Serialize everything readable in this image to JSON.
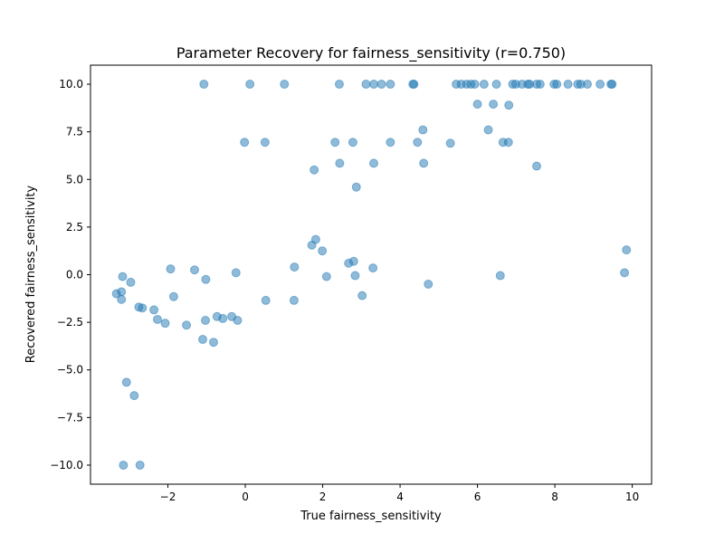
{
  "chart_data": {
    "type": "scatter",
    "title": "Parameter Recovery for fairness_sensitivity (r=0.750)",
    "xlabel": "True fairness_sensitivity",
    "ylabel": "Recovered fairness_sensitivity",
    "xlim": [
      -4,
      10.5
    ],
    "ylim": [
      -11,
      11
    ],
    "xticks": [
      -2,
      0,
      2,
      4,
      6,
      8,
      10
    ],
    "xtick_labels": [
      "−2",
      "0",
      "2",
      "4",
      "6",
      "8",
      "10"
    ],
    "yticks": [
      -10,
      -7.5,
      -5,
      -2.5,
      0,
      2.5,
      5,
      7.5,
      10
    ],
    "ytick_labels": [
      "−10.0",
      "−7.5",
      "−5.0",
      "−2.5",
      "0.0",
      "2.5",
      "5.0",
      "7.5",
      "10.0"
    ],
    "grid": false,
    "color": "#1f77b4",
    "points": [
      {
        "x": -1.07,
        "y": 10
      },
      {
        "x": 0.12,
        "y": 10
      },
      {
        "x": 1.01,
        "y": 10
      },
      {
        "x": 2.43,
        "y": 10
      },
      {
        "x": 3.12,
        "y": 10
      },
      {
        "x": 3.32,
        "y": 10
      },
      {
        "x": 3.52,
        "y": 10
      },
      {
        "x": 3.75,
        "y": 10
      },
      {
        "x": 4.33,
        "y": 10
      },
      {
        "x": 4.36,
        "y": 10
      },
      {
        "x": 5.45,
        "y": 10
      },
      {
        "x": 5.58,
        "y": 10
      },
      {
        "x": 5.72,
        "y": 10
      },
      {
        "x": 5.83,
        "y": 10
      },
      {
        "x": 5.93,
        "y": 10
      },
      {
        "x": 6.17,
        "y": 10
      },
      {
        "x": 6.49,
        "y": 10
      },
      {
        "x": 6.91,
        "y": 10
      },
      {
        "x": 6.99,
        "y": 10
      },
      {
        "x": 7.15,
        "y": 10
      },
      {
        "x": 7.3,
        "y": 10
      },
      {
        "x": 7.35,
        "y": 10
      },
      {
        "x": 7.53,
        "y": 10
      },
      {
        "x": 7.62,
        "y": 10
      },
      {
        "x": 7.98,
        "y": 10
      },
      {
        "x": 8.05,
        "y": 10
      },
      {
        "x": 8.34,
        "y": 10
      },
      {
        "x": 8.59,
        "y": 10
      },
      {
        "x": 8.67,
        "y": 10
      },
      {
        "x": 8.84,
        "y": 10
      },
      {
        "x": 9.17,
        "y": 10
      },
      {
        "x": 9.45,
        "y": 10
      },
      {
        "x": 9.48,
        "y": 10
      },
      {
        "x": 6.0,
        "y": 8.95
      },
      {
        "x": 6.41,
        "y": 8.95
      },
      {
        "x": 6.81,
        "y": 8.9
      },
      {
        "x": 4.59,
        "y": 7.6
      },
      {
        "x": 6.28,
        "y": 7.6
      },
      {
        "x": -0.02,
        "y": 6.95
      },
      {
        "x": 0.51,
        "y": 6.95
      },
      {
        "x": 2.32,
        "y": 6.95
      },
      {
        "x": 2.78,
        "y": 6.95
      },
      {
        "x": 3.75,
        "y": 6.95
      },
      {
        "x": 4.45,
        "y": 6.95
      },
      {
        "x": 5.3,
        "y": 6.9
      },
      {
        "x": 6.66,
        "y": 6.95
      },
      {
        "x": 6.8,
        "y": 6.95
      },
      {
        "x": 2.44,
        "y": 5.85
      },
      {
        "x": 3.32,
        "y": 5.85
      },
      {
        "x": 4.61,
        "y": 5.85
      },
      {
        "x": 7.53,
        "y": 5.7
      },
      {
        "x": 1.78,
        "y": 5.5
      },
      {
        "x": 2.87,
        "y": 4.6
      },
      {
        "x": 1.82,
        "y": 1.85
      },
      {
        "x": 1.72,
        "y": 1.55
      },
      {
        "x": 1.99,
        "y": 1.25
      },
      {
        "x": 9.85,
        "y": 1.3
      },
      {
        "x": 2.8,
        "y": 0.7
      },
      {
        "x": 2.67,
        "y": 0.6
      },
      {
        "x": 1.27,
        "y": 0.4
      },
      {
        "x": 3.3,
        "y": 0.35
      },
      {
        "x": -1.93,
        "y": 0.3
      },
      {
        "x": -1.31,
        "y": 0.25
      },
      {
        "x": -0.24,
        "y": 0.1
      },
      {
        "x": 9.8,
        "y": 0.1
      },
      {
        "x": -3.17,
        "y": -0.1
      },
      {
        "x": 2.1,
        "y": -0.1
      },
      {
        "x": 2.84,
        "y": -0.05
      },
      {
        "x": 6.59,
        "y": -0.05
      },
      {
        "x": -1.02,
        "y": -0.25
      },
      {
        "x": -2.96,
        "y": -0.4
      },
      {
        "x": 4.73,
        "y": -0.5
      },
      {
        "x": -3.2,
        "y": -0.9
      },
      {
        "x": -3.33,
        "y": -1.0
      },
      {
        "x": -3.2,
        "y": -1.3
      },
      {
        "x": -1.85,
        "y": -1.15
      },
      {
        "x": 3.02,
        "y": -1.1
      },
      {
        "x": 0.53,
        "y": -1.35
      },
      {
        "x": 1.26,
        "y": -1.35
      },
      {
        "x": -2.75,
        "y": -1.7
      },
      {
        "x": -2.66,
        "y": -1.75
      },
      {
        "x": -2.36,
        "y": -1.85
      },
      {
        "x": -0.73,
        "y": -2.2
      },
      {
        "x": -0.35,
        "y": -2.2
      },
      {
        "x": -0.58,
        "y": -2.3
      },
      {
        "x": -2.27,
        "y": -2.35
      },
      {
        "x": -1.03,
        "y": -2.4
      },
      {
        "x": -0.2,
        "y": -2.4
      },
      {
        "x": -2.07,
        "y": -2.55
      },
      {
        "x": -1.52,
        "y": -2.65
      },
      {
        "x": -1.1,
        "y": -3.4
      },
      {
        "x": -0.82,
        "y": -3.55
      },
      {
        "x": -3.07,
        "y": -5.65
      },
      {
        "x": -2.87,
        "y": -6.35
      },
      {
        "x": -3.15,
        "y": -10
      },
      {
        "x": -2.72,
        "y": -10
      }
    ]
  }
}
